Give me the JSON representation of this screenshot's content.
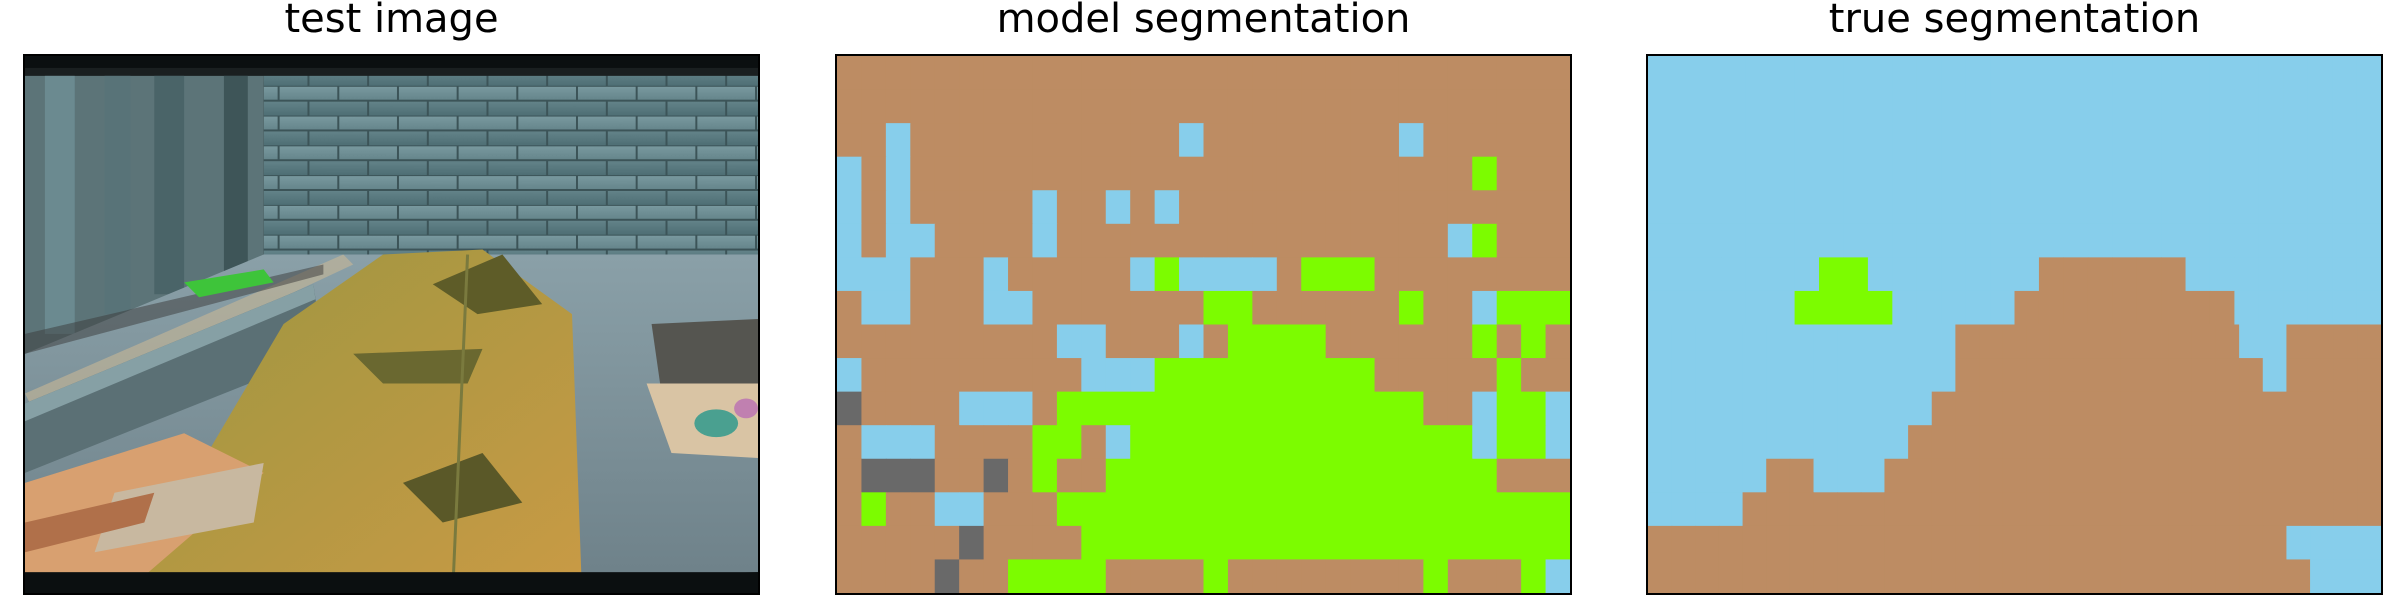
{
  "panels": {
    "test": {
      "title": "test image"
    },
    "model": {
      "title": "model segmentation"
    },
    "truth": {
      "title": "true segmentation"
    }
  },
  "colors": {
    "sky": "#87CEEB",
    "ground": "#BD8C63",
    "green": "#7CFC00",
    "gray": "#696969"
  },
  "legend_classes": [
    "sky",
    "ground",
    "green",
    "gray"
  ],
  "model_grid": [
    "GGGGGGGGGGGGGGGGGGGGGGGGGGGGGG",
    "GGGGGGGGGGGGGGGGGGGGGGGGGGGGGG",
    "GGSGGGGGGGGGGGSGGGGGGGGSGGGGGG",
    "SGSGGGGGGGGGGGGGGGGGGGGGGGNGGG",
    "SGSGGGGGSGGSGSGGGGGGGGGGGGGGGG",
    "SGSSGGGGSGGGGGGGGGGGGGGGGSNGGG",
    "SSSGGGSGGGGGSNSSSSGNNNGGGGGGGG",
    "GSSGGGSSGGGGGGGNNGGGGGGNGGSNNN",
    "GGGGGGGGGSSGGGSGNNNNGGGGGGNGNG",
    "SGGGGGGGGGSSSNNNNNNNNNGGGGGNGG",
    "XGGGGSSSGNNNNNNNNNNNNNNNGGSNNS",
    "GSSSGGGGNNGSNNNNNNNNNNNNNNSNNS",
    "GXXXGGXGNGGNNNNNNNNNNNNNNNNGGG",
    "GNGGSSGGGNNNNNNNNNNNNNNNNNNNNN",
    "GGGGGXGGGGNNNNNNNNNNNNNNNNNNNN",
    "GGGGXGGNNNNGGGGNGGGGGGGGNGGGNS"
  ],
  "truth_grid": [
    "SSSSSSSSSSSSSSSSSSSSSSSSSSSSSS",
    "SSSSSSSSSSSSSSSSSSSSSSSSSSSSSS",
    "SSSSSSSSSSSSSSSSSSSSSSSSSSSSSS",
    "SSSSSSSSSSSSSSSSSSSSSSSSSSSSSS",
    "SSSSSSSSSSSSSSSSSSSSSSSSSSSSSS",
    "SSSSSSSSSSSSSSSSSSSSSSSSSSSSSS",
    "SSSSSSSNNSSSSSSSGGGGGGSSSSSSSS",
    "SSSSSSNNNNSSSSSGGGGGGGGGSSSSSS",
    "SSSSSSSSSSSSSGGGGGGGGGGGGSSGGGG",
    "SSSSSSSSSSSSSGGGGGGGGGGGGGSGGGG",
    "SSSSSSSSSSSSGGGGGGGGGGGGGGGGGGG",
    "SSSSSSSSSSSGGGGGGGGGGGGGGGGGGGG",
    "SSSSSGGSSSGGGGGGGGGGGGGGGGGGGGG",
    "SSSSGGGGGGGGGGGGGGGGGGGGGGGGGGG",
    "GGGGGGGGGGGGGGGGGGGGGGGGGGGSSSS",
    "GGGGGGGGGGGGGGGGGGGGGGGGGGGGSSS"
  ]
}
